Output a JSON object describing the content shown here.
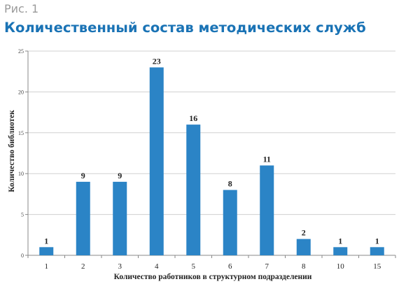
{
  "figure": {
    "label": "Рис. 1",
    "title": "Количественный состав методических служб"
  },
  "chart_data": {
    "type": "bar",
    "categories": [
      "1",
      "2",
      "3",
      "4",
      "5",
      "6",
      "7",
      "8",
      "10",
      "15"
    ],
    "values": [
      1,
      9,
      9,
      23,
      16,
      8,
      11,
      2,
      1,
      1
    ],
    "data_labels": [
      "1",
      "9",
      "9",
      "23",
      "16",
      "8",
      "11",
      "2",
      "1",
      "1"
    ],
    "xlabel": "Количество работников в структурном подразделении",
    "ylabel": "Количество библиотек",
    "ylim": [
      0,
      25
    ],
    "yticks": [
      0,
      5,
      10,
      15,
      20,
      25
    ],
    "grid": "horizontal",
    "legend": "none",
    "bar_color": "#2b84c6"
  }
}
